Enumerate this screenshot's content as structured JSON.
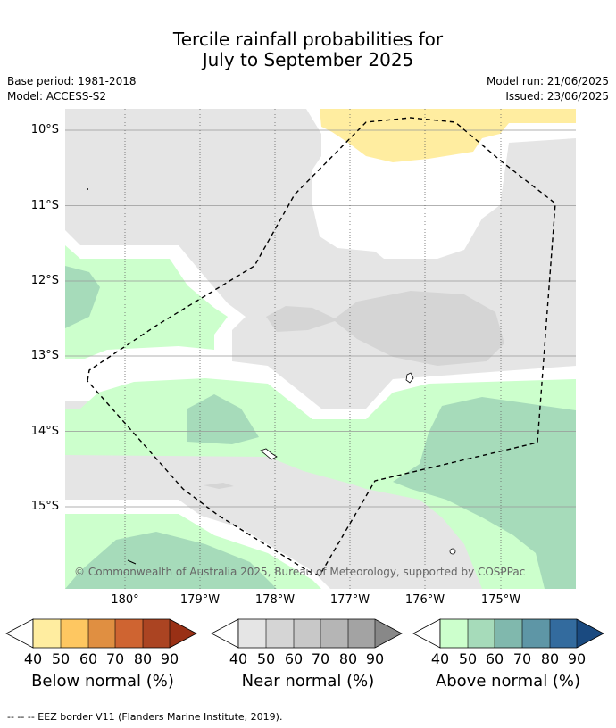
{
  "title_line1": "Tercile rainfall probabilities for",
  "title_line2": "July to September 2025",
  "base_period": "Base period: 1981-2018",
  "model": "Model: ACCESS-S2",
  "model_run": "Model run: 21/06/2025",
  "issued": "Issued: 23/06/2025",
  "lat_labels": [
    "10°S",
    "11°S",
    "12°S",
    "13°S",
    "14°S",
    "15°S"
  ],
  "lon_labels": [
    "180°",
    "179°W",
    "178°W",
    "177°W",
    "176°W",
    "175°W"
  ],
  "copyright": "© Commonwealth of Australia 2025, Bureau of Meteorology, supported by COSPPac",
  "colorbars": [
    {
      "name": "Below normal (%)",
      "colors": [
        "#ffeda0",
        "#fec761",
        "#e08f41",
        "#cf6431",
        "#ab4422",
        "#993015"
      ],
      "ticks": [
        "40",
        "50",
        "60",
        "70",
        "80",
        "90"
      ]
    },
    {
      "name": "Near normal (%)",
      "colors": [
        "#e5e5e5",
        "#d5d5d5",
        "#c8c8c8",
        "#b5b5b5",
        "#a3a3a3",
        "#888888"
      ],
      "ticks": [
        "40",
        "50",
        "60",
        "70",
        "80",
        "90"
      ]
    },
    {
      "name": "Above normal (%)",
      "colors": [
        "#ccffcc",
        "#a6dbba",
        "#80b8ad",
        "#5e96a6",
        "#336b9e",
        "#1a4a80"
      ],
      "ticks": [
        "40",
        "50",
        "60",
        "70",
        "80",
        "90"
      ]
    }
  ],
  "footnote": "--  --  -- EEZ border V11 (Flanders Marine Institute, 2019)."
}
